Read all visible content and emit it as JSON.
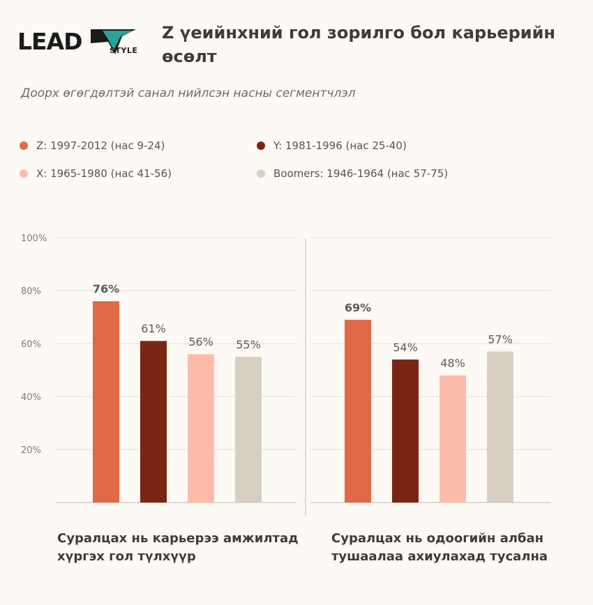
{
  "logo": {
    "main": "LEAD",
    "suffix": "STYLE"
  },
  "title": "Z үеийнхний гол зорилго бол карьерийн өсөлт",
  "subtitle": "Доорх өгөгдөлтэй санал нийлсэн насны сегментчлэл",
  "legend": [
    {
      "label": "Z: 1997-2012 (нас 9-24)",
      "color": "#e06a48"
    },
    {
      "label": "Y: 1981-1996 (нас 25-40)",
      "color": "#7a2614"
    },
    {
      "label": "X: 1965-1980 (нас 41-56)",
      "color": "#fdbcaa"
    },
    {
      "label": "Boomers: 1946-1964 (нас 57-75)",
      "color": "#d7cfc2"
    }
  ],
  "chart_data": {
    "type": "bar",
    "ylim": [
      0,
      100
    ],
    "yticks": [
      "20%",
      "40%",
      "60%",
      "80%",
      "100%"
    ],
    "ytick_values": [
      20,
      40,
      60,
      80,
      100
    ],
    "series": [
      {
        "name": "Z: 1997-2012 (нас 9-24)",
        "color": "#e06a48"
      },
      {
        "name": "Y: 1981-1996 (нас 25-40)",
        "color": "#7a2614"
      },
      {
        "name": "X: 1965-1980 (нас 41-56)",
        "color": "#fdbcaa"
      },
      {
        "name": "Boomers: 1946-1964 (нас 57-75)",
        "color": "#d7cfc2"
      }
    ],
    "panels": [
      {
        "category": "Суралцах нь карьерээ амжилтад хүргэх гол түлхүүр",
        "values": [
          76,
          61,
          56,
          55
        ],
        "labels": [
          "76%",
          "61%",
          "56%",
          "55%"
        ]
      },
      {
        "category": "Суралцах нь одоогийн албан тушаалаа ахиулахад тусална",
        "values": [
          69,
          54,
          48,
          57
        ],
        "labels": [
          "69%",
          "54%",
          "48%",
          "57%"
        ]
      }
    ]
  }
}
